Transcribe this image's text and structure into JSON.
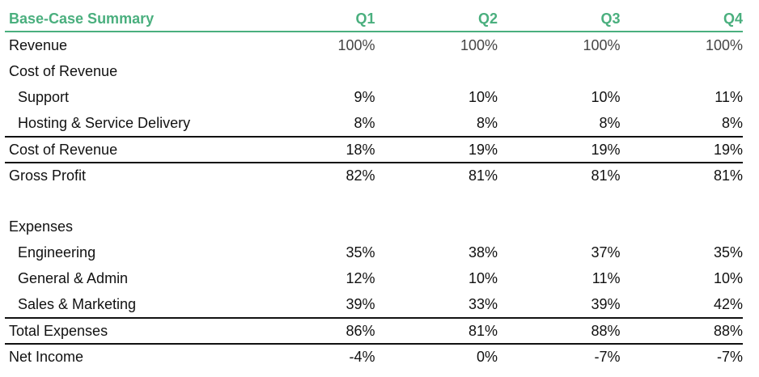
{
  "table": {
    "title": "Base-Case Summary",
    "columns": [
      "Q1",
      "Q2",
      "Q3",
      "Q4"
    ],
    "rows": [
      {
        "label": "Revenue",
        "values": [
          "100%",
          "100%",
          "100%",
          "100%"
        ]
      },
      {
        "label": "Cost of Revenue",
        "values": [
          "",
          "",
          "",
          ""
        ]
      },
      {
        "label": "Support",
        "values": [
          "9%",
          "10%",
          "10%",
          "11%"
        ]
      },
      {
        "label": "Hosting & Service Delivery",
        "values": [
          "8%",
          "8%",
          "8%",
          "8%"
        ]
      },
      {
        "label": "Cost of Revenue",
        "values": [
          "18%",
          "19%",
          "19%",
          "19%"
        ]
      },
      {
        "label": "Gross Profit",
        "values": [
          "82%",
          "81%",
          "81%",
          "81%"
        ]
      },
      {
        "label": "",
        "values": [
          "",
          "",
          "",
          ""
        ]
      },
      {
        "label": "Expenses",
        "values": [
          "",
          "",
          "",
          ""
        ]
      },
      {
        "label": "Engineering",
        "values": [
          "35%",
          "38%",
          "37%",
          "35%"
        ]
      },
      {
        "label": "General & Admin",
        "values": [
          "12%",
          "10%",
          "11%",
          "10%"
        ]
      },
      {
        "label": "Sales & Marketing",
        "values": [
          "39%",
          "33%",
          "39%",
          "42%"
        ]
      },
      {
        "label": "Total Expenses",
        "values": [
          "86%",
          "81%",
          "88%",
          "88%"
        ]
      },
      {
        "label": "Net Income",
        "values": [
          "-4%",
          "0%",
          "-7%",
          "-7%"
        ]
      }
    ]
  },
  "colors": {
    "accent": "#4aaf7e",
    "text": "#111111",
    "rule": "#111111"
  }
}
